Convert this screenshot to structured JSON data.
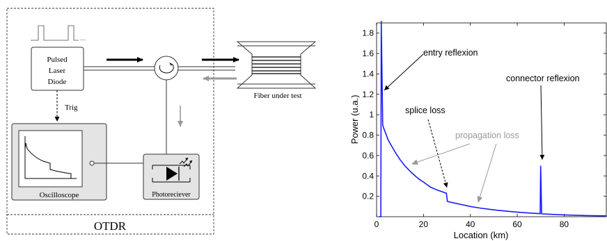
{
  "diagram": {
    "pulsed_laser_label": [
      "Pulsed",
      "Laser",
      "Diode"
    ],
    "trig_label": "Trig",
    "fiber_label": "Fiber under test",
    "oscilloscope_label": "Oscilloscope",
    "photoreceiver_label": "Photoreciever",
    "otdr_label": "OTDR",
    "pulse_trail": "..."
  },
  "chart_data": {
    "type": "line",
    "xlabel": "Location (km)",
    "ylabel": "Power (u.a.)",
    "xlim": [
      0,
      98
    ],
    "ylim": [
      0,
      1.9
    ],
    "x_ticks": [
      0,
      20,
      40,
      60,
      80
    ],
    "y_ticks": [
      0.2,
      0.4,
      0.6,
      0.8,
      1,
      1.2,
      1.4,
      1.6,
      1.8
    ],
    "series_color": "#1a1aff",
    "series": [
      {
        "x": [
          1.0,
          1.8,
          2.0,
          2.6,
          3,
          5,
          8,
          10,
          12,
          15,
          18,
          20,
          23,
          26,
          29.8,
          30.2,
          33,
          36,
          40,
          44,
          48,
          52,
          56,
          60,
          64,
          68,
          69.8,
          70,
          70.4,
          72,
          76,
          80,
          85,
          90,
          95,
          98
        ],
        "y": [
          0.0,
          0.0,
          1.92,
          0.9,
          0.87,
          0.75,
          0.63,
          0.56,
          0.5,
          0.43,
          0.37,
          0.34,
          0.29,
          0.26,
          0.23,
          0.15,
          0.135,
          0.12,
          0.1,
          0.085,
          0.073,
          0.062,
          0.053,
          0.045,
          0.038,
          0.032,
          0.03,
          0.5,
          0.028,
          0.026,
          0.022,
          0.018,
          0.014,
          0.011,
          0.009,
          0.008
        ]
      }
    ],
    "annotations": [
      {
        "text": "entry reflexion",
        "color": "#000000"
      },
      {
        "text": "connector reflexion",
        "color": "#000000"
      },
      {
        "text": "splice loss",
        "color": "#000000"
      },
      {
        "text": "propagation loss",
        "color": "#999999"
      }
    ]
  }
}
